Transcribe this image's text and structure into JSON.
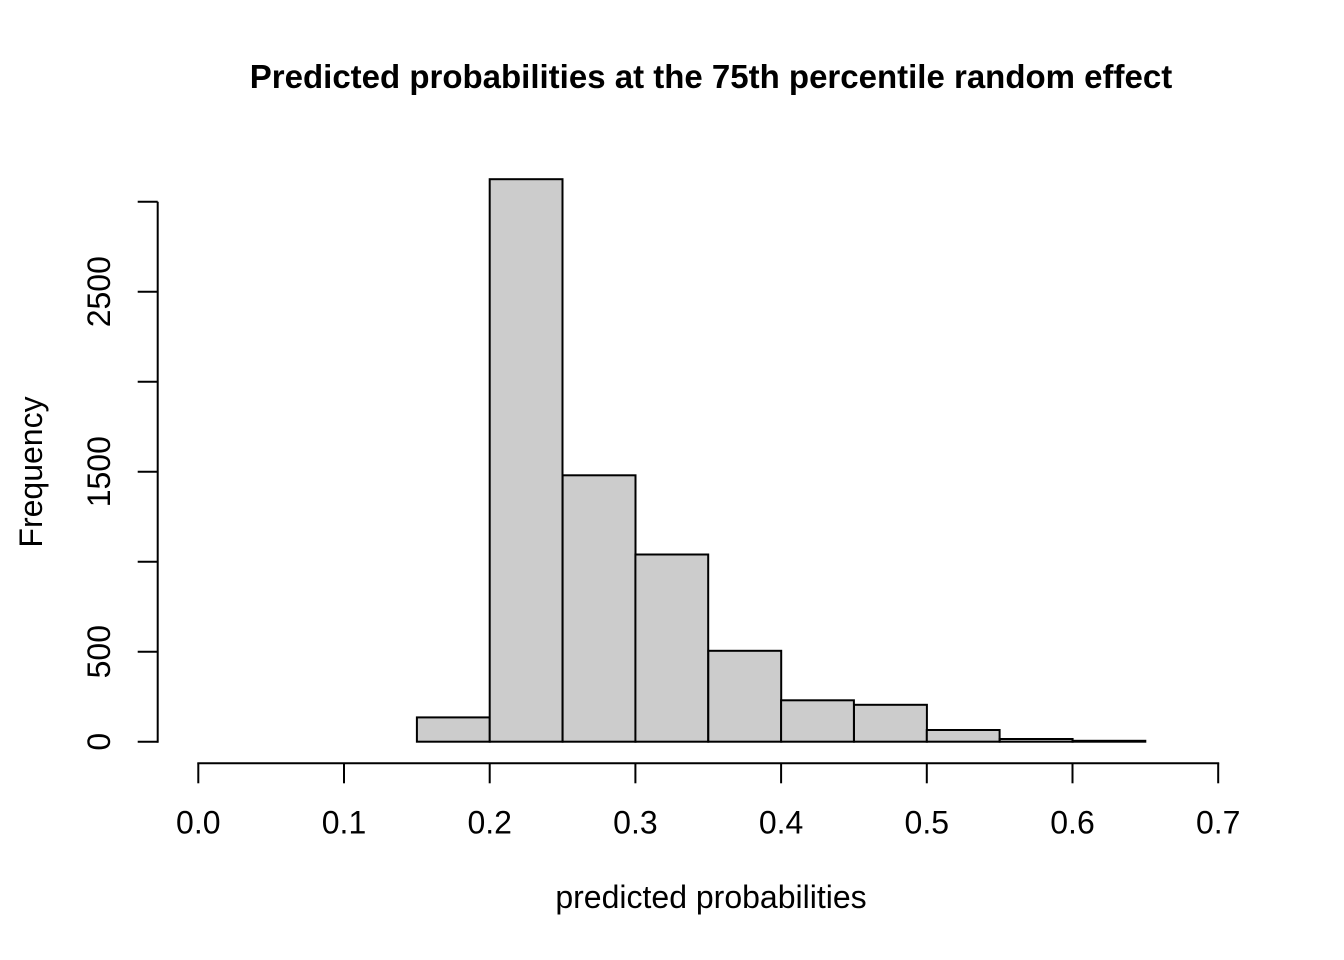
{
  "chart_data": {
    "type": "bar",
    "subtype": "histogram",
    "title": "Predicted probabilities at the 75th percentile random effect",
    "xlabel": "predicted probabilities",
    "ylabel": "Frequency",
    "bin_edges": [
      0.15,
      0.2,
      0.25,
      0.3,
      0.35,
      0.4,
      0.45,
      0.5,
      0.55,
      0.6,
      0.65
    ],
    "values": [
      135,
      3125,
      1480,
      1040,
      505,
      230,
      205,
      65,
      15,
      5
    ],
    "xlim": [
      0.0,
      0.7
    ],
    "ylim": [
      0,
      3000
    ],
    "x_ticks": [
      0.0,
      0.1,
      0.2,
      0.3,
      0.4,
      0.5,
      0.6,
      0.7
    ],
    "x_tick_labels": [
      "0.0",
      "0.1",
      "0.2",
      "0.3",
      "0.4",
      "0.5",
      "0.6",
      "0.7"
    ],
    "y_ticks": [
      0,
      500,
      1000,
      1500,
      2000,
      2500,
      3000
    ],
    "y_tick_labels": [
      "0",
      "500",
      "",
      "1500",
      "",
      "2500",
      ""
    ],
    "grid": false,
    "legend": null,
    "bar_fill": "#cccccc",
    "bar_border": "#000000",
    "axis_color": "#000000",
    "background": "#ffffff"
  }
}
